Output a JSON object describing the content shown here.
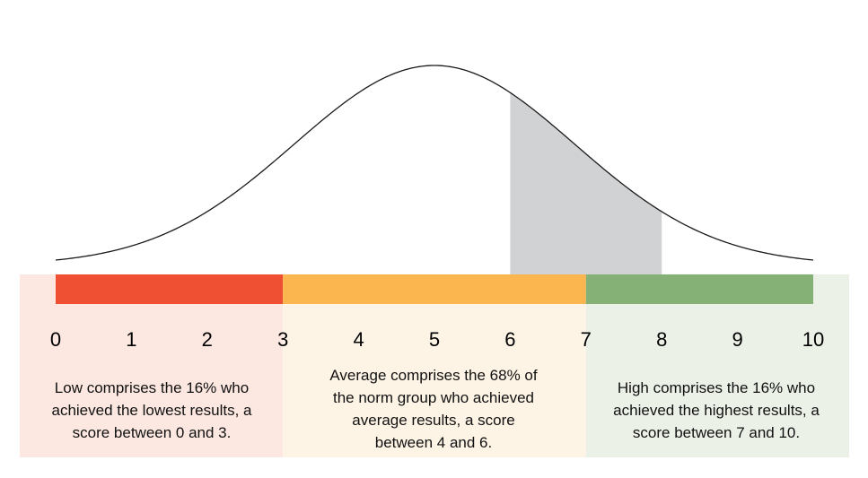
{
  "chart_data": {
    "type": "area",
    "title": "",
    "xlabel": "",
    "ylabel": "",
    "x_range": [
      0,
      10
    ],
    "ticks": [
      "0",
      "1",
      "2",
      "3",
      "4",
      "5",
      "6",
      "7",
      "8",
      "9",
      "10"
    ],
    "curve": {
      "distribution": "normal",
      "mean": 5,
      "sd": 1.85
    },
    "highlight": {
      "from": 6,
      "to": 8,
      "color": "#d1d2d4"
    },
    "bands": [
      {
        "key": "low",
        "from": 0,
        "to": 3,
        "bar_color": "#ef4f33",
        "bg_color": "#fce8e1",
        "description": [
          "Low comprises the 16% who",
          "achieved the lowest results, a",
          "score between 0 and 3."
        ]
      },
      {
        "key": "average",
        "from": 3,
        "to": 7,
        "bar_color": "#fbb64f",
        "bg_color": "#fef4e6",
        "description": [
          "Average comprises the 68% of",
          "the norm group who achieved",
          "average results, a score",
          "between 4 and 6."
        ]
      },
      {
        "key": "high",
        "from": 7,
        "to": 10,
        "bar_color": "#85b076",
        "bg_color": "#ecf1e8",
        "description": [
          "High comprises the 16% who",
          "achieved the highest results, a",
          "score between 7 and 10."
        ]
      }
    ]
  }
}
